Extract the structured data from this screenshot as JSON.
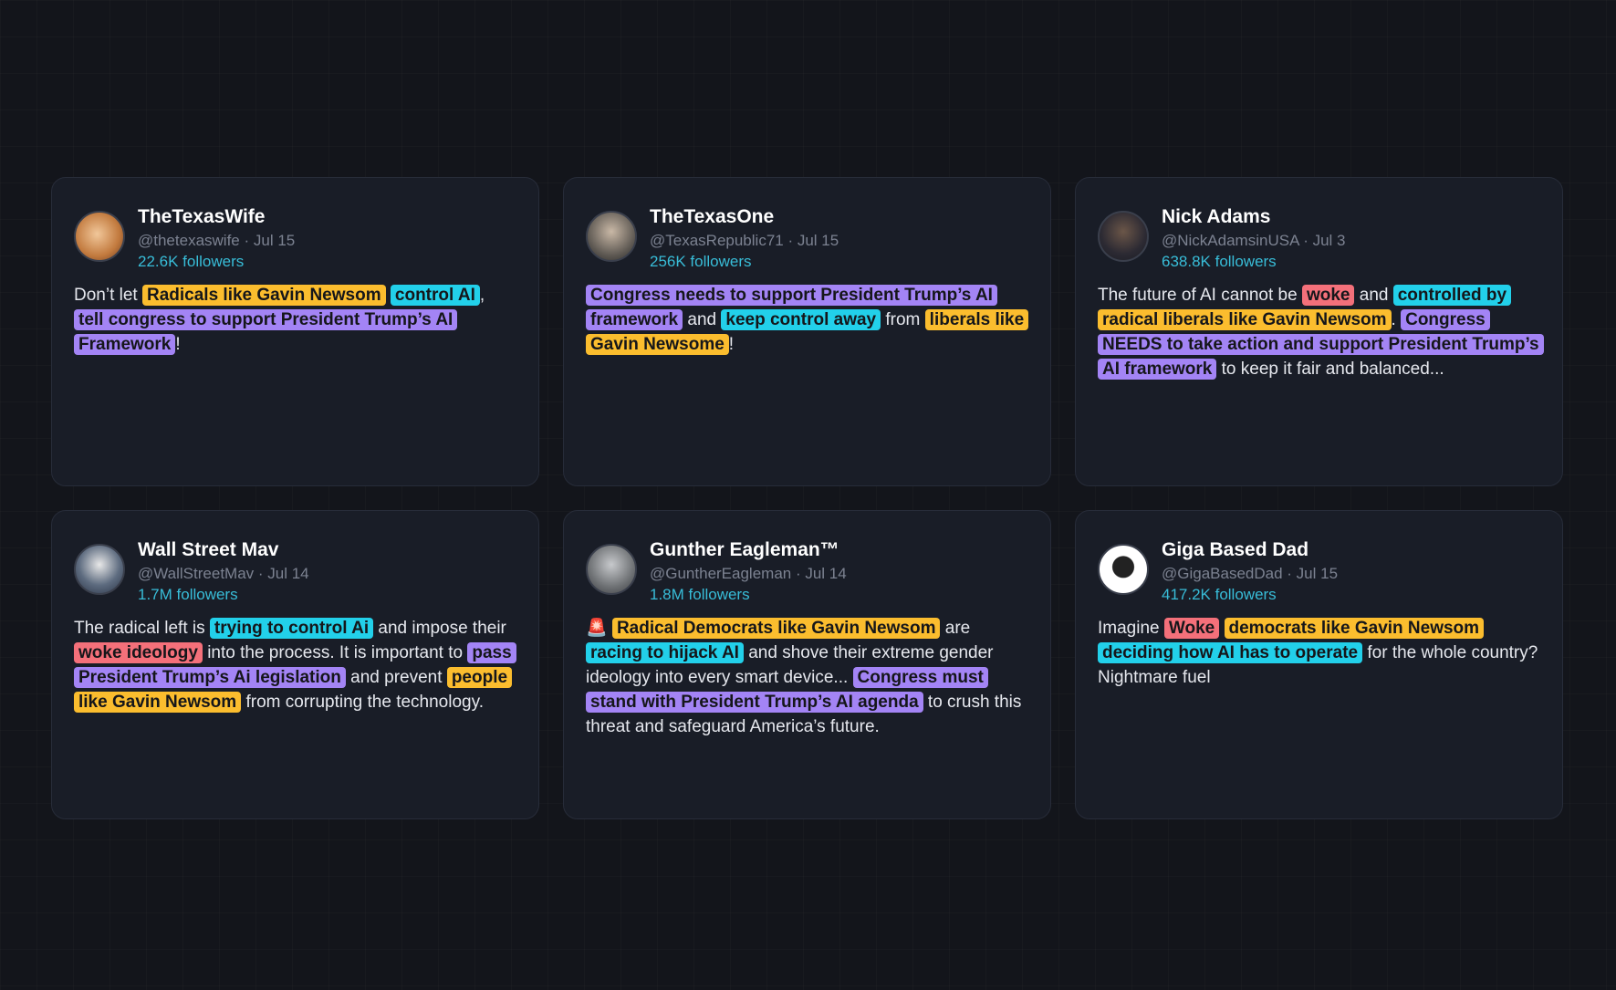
{
  "posts": [
    {
      "name": "TheTexasWife",
      "meta": "@thetexaswife · Jul 15",
      "followers": "22.6K followers",
      "segments": [
        {
          "text": "Don’t let "
        },
        {
          "text": "Radicals like Gavin Newsom",
          "highlight": "orange"
        },
        {
          "text": " "
        },
        {
          "text": "control AI",
          "highlight": "cyan"
        },
        {
          "text": ", "
        },
        {
          "text": "tell congress to support President Trump’s AI Framework",
          "highlight": "purple"
        },
        {
          "text": "!"
        }
      ]
    },
    {
      "name": "TheTexasOne",
      "meta": "@TexasRepublic71 · Jul 15",
      "followers": "256K followers",
      "segments": [
        {
          "text": "Congress needs to support President Trump’s AI framework",
          "highlight": "purple"
        },
        {
          "text": " and "
        },
        {
          "text": "keep control away",
          "highlight": "cyan"
        },
        {
          "text": " from "
        },
        {
          "text": "liberals like Gavin Newsome",
          "highlight": "orange"
        },
        {
          "text": "!"
        }
      ]
    },
    {
      "name": "Nick Adams",
      "meta": "@NickAdamsinUSA · Jul 3",
      "followers": "638.8K followers",
      "segments": [
        {
          "text": "The future of AI cannot be "
        },
        {
          "text": "woke",
          "highlight": "red"
        },
        {
          "text": " and "
        },
        {
          "text": "controlled by",
          "highlight": "cyan"
        },
        {
          "text": " "
        },
        {
          "text": "radical liberals like Gavin Newsom",
          "highlight": "orange"
        },
        {
          "text": ". "
        },
        {
          "text": "Congress NEEDS to take action and support President Trump’s AI framework",
          "highlight": "purple"
        },
        {
          "text": " to keep it fair and balanced..."
        }
      ]
    },
    {
      "name": "Wall Street Mav",
      "meta": "@WallStreetMav · Jul 14",
      "followers": "1.7M followers",
      "segments": [
        {
          "text": "The radical left is "
        },
        {
          "text": "trying to control Ai",
          "highlight": "cyan"
        },
        {
          "text": " and impose their "
        },
        {
          "text": "woke ideology",
          "highlight": "red"
        },
        {
          "text": " into the process. It is important to "
        },
        {
          "text": "pass President Trump’s Ai legislation",
          "highlight": "purple"
        },
        {
          "text": " and prevent "
        },
        {
          "text": "people like Gavin Newsom",
          "highlight": "orange"
        },
        {
          "text": " from corrupting the technology."
        }
      ]
    },
    {
      "name": "Gunther Eagleman™",
      "meta": "@GuntherEagleman · Jul 14",
      "followers": "1.8M followers",
      "segments": [
        {
          "text": "🚨 "
        },
        {
          "text": "Radical Democrats like Gavin Newsom",
          "highlight": "orange"
        },
        {
          "text": " are "
        },
        {
          "text": "racing to hijack AI",
          "highlight": "cyan"
        },
        {
          "text": " and shove their extreme gender ideology into every smart device... "
        },
        {
          "text": "Congress must stand with President Trump’s AI agenda",
          "highlight": "purple"
        },
        {
          "text": " to crush this threat and safeguard America’s future."
        }
      ]
    },
    {
      "name": "Giga Based Dad",
      "meta": "@GigaBasedDad · Jul 15",
      "followers": "417.2K followers",
      "segments": [
        {
          "text": "Imagine "
        },
        {
          "text": "Woke",
          "highlight": "red"
        },
        {
          "text": " "
        },
        {
          "text": "democrats like Gavin Newsom",
          "highlight": "orange"
        },
        {
          "text": " "
        },
        {
          "text": "deciding how AI has to operate",
          "highlight": "cyan"
        },
        {
          "text": " for the whole country? Nightmare fuel"
        }
      ]
    }
  ]
}
